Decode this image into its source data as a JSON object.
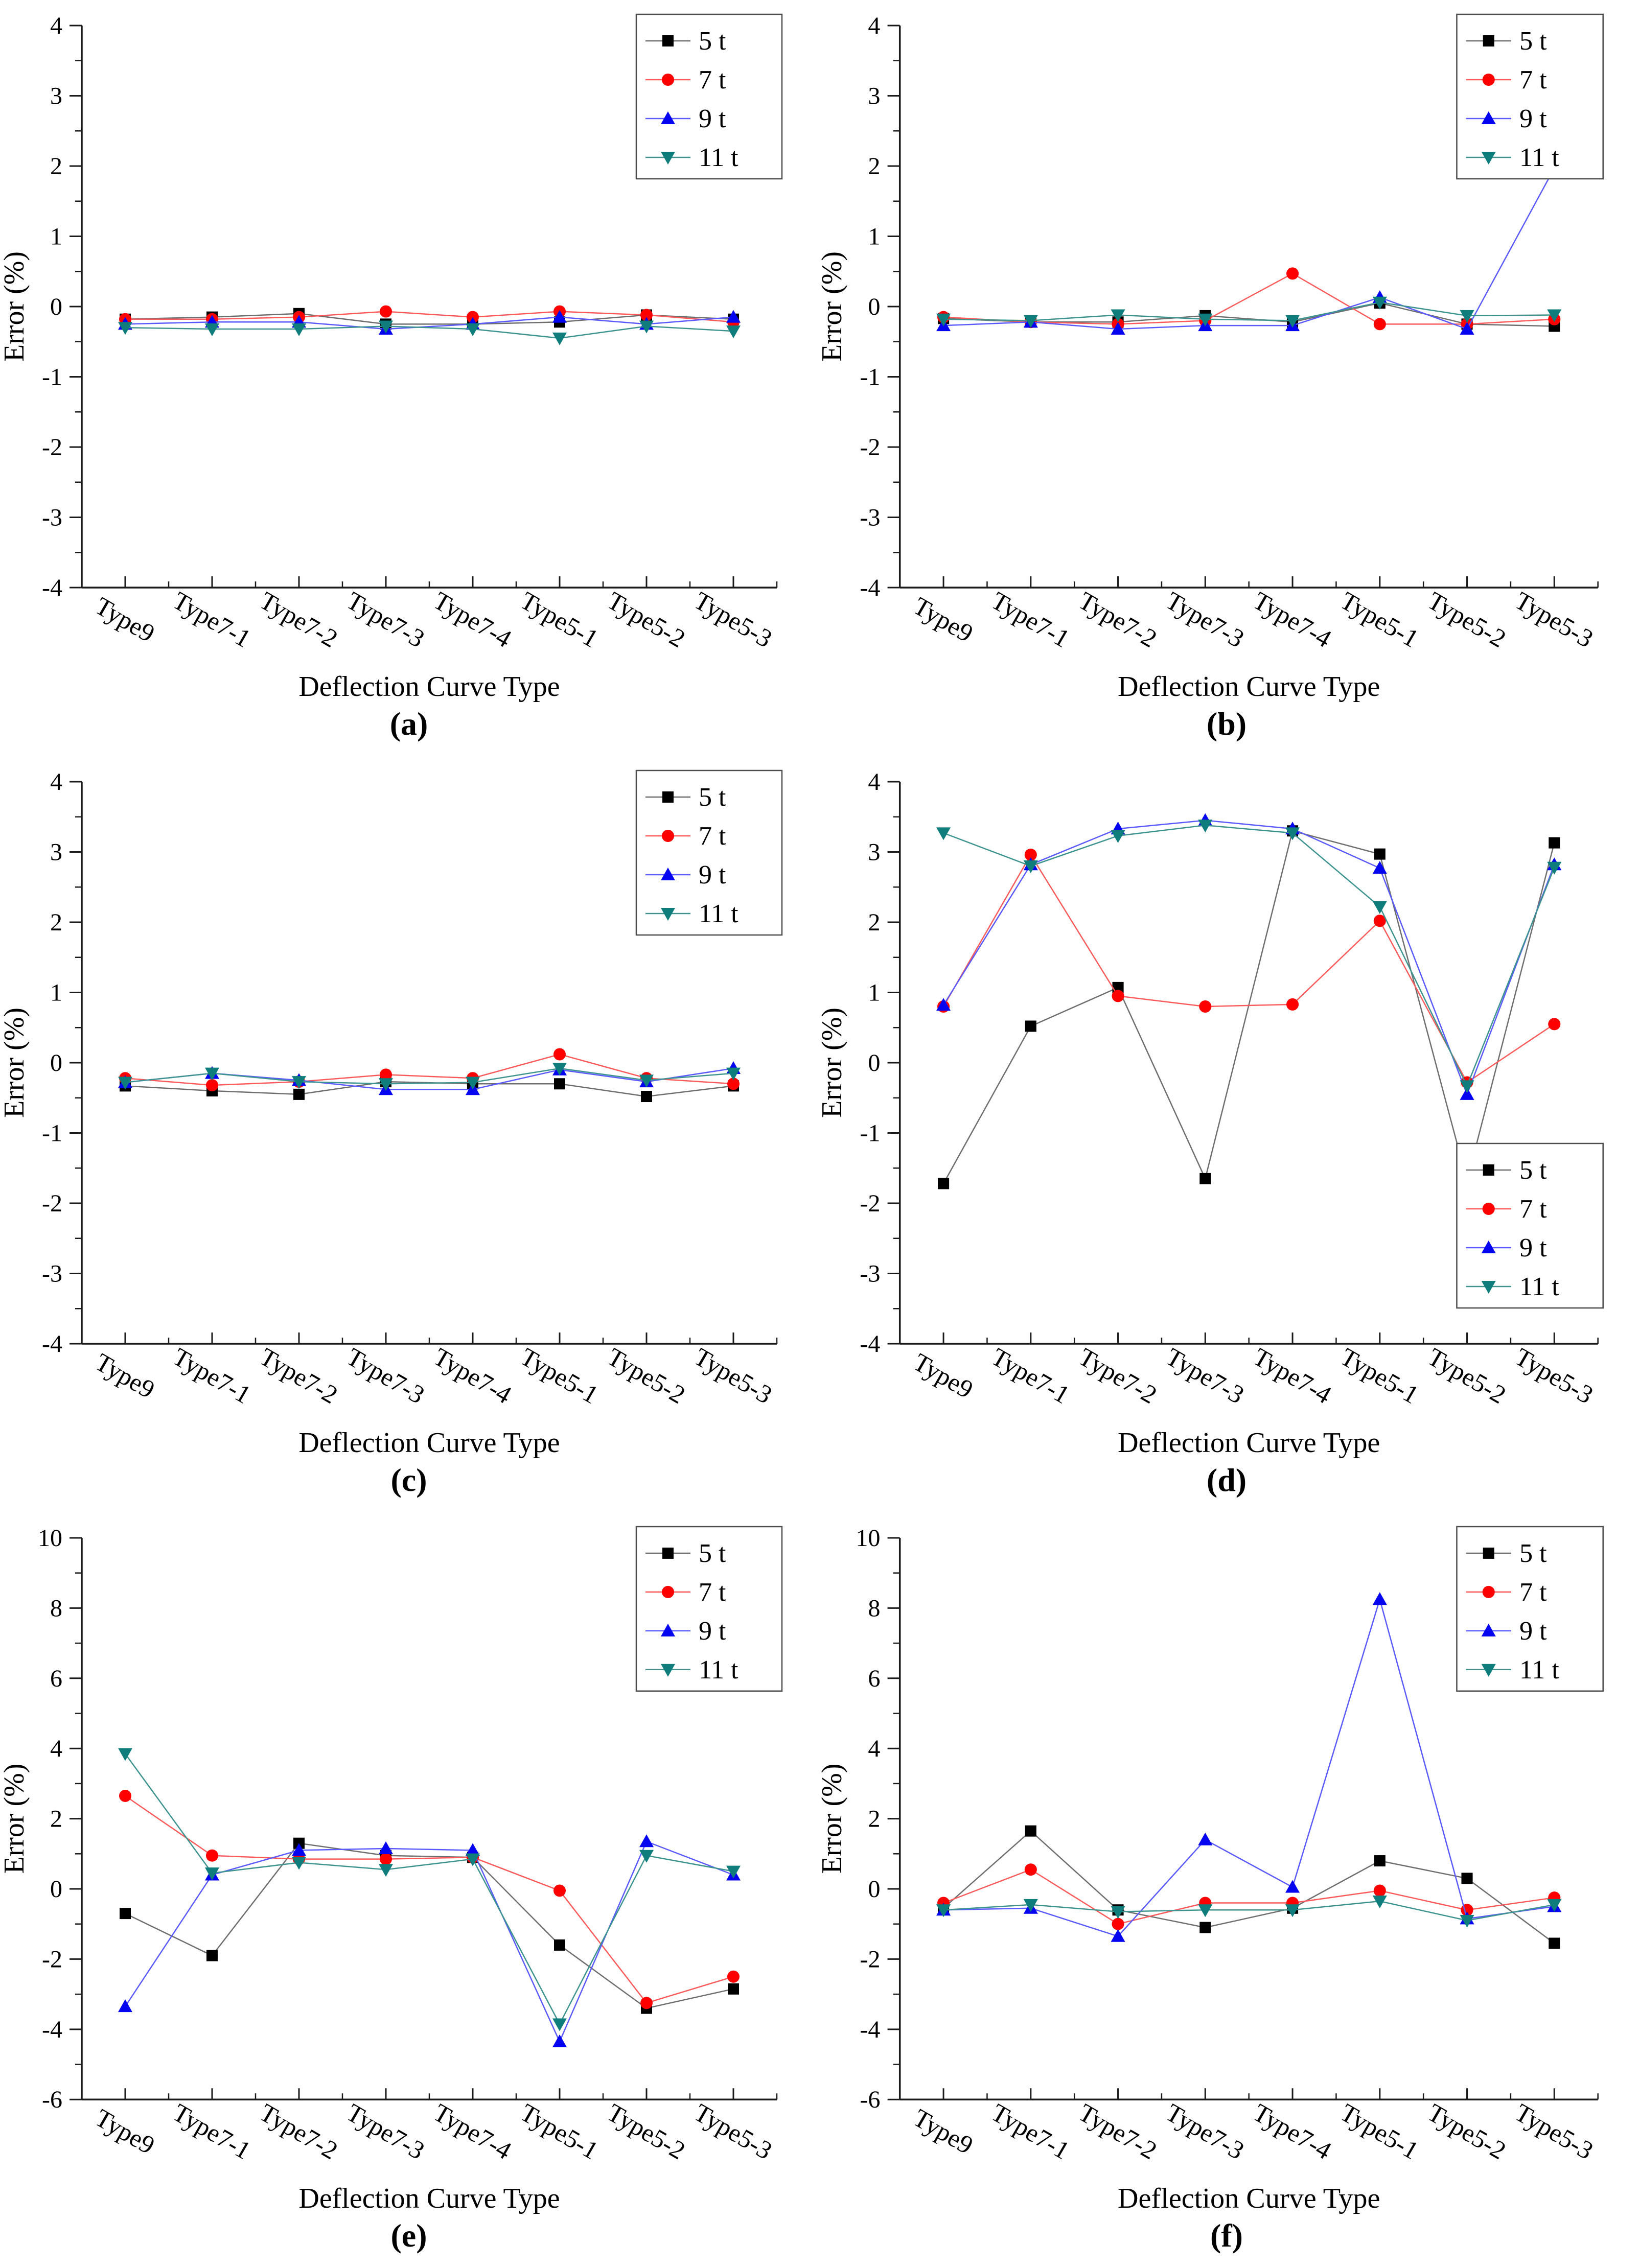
{
  "figure": {
    "description": "Six-panel line chart figure of load test errors by deflection curve type",
    "xlabel": "Deflection Curve Type",
    "ylabel": "Error (%)",
    "categories": [
      "Type9",
      "Type7-1",
      "Type7-2",
      "Type7-3",
      "Type7-4",
      "Type5-1",
      "Type5-2",
      "Type5-3"
    ],
    "series_styles": [
      {
        "name": "5 t",
        "marker": "square",
        "marker_color": "#000000",
        "line_color": "#6e6e6e"
      },
      {
        "name": "7 t",
        "marker": "circle",
        "marker_color": "#fe0000",
        "line_color": "#fc5a5a"
      },
      {
        "name": "9 t",
        "marker": "triangle-up",
        "marker_color": "#0504f0",
        "line_color": "#5a59ff"
      },
      {
        "name": "11 t",
        "marker": "triangle-down",
        "marker_color": "#0e7d7c",
        "line_color": "#3d948f"
      }
    ],
    "axis_color": "#1a1a1a",
    "legend_border_color": "#4d4d4d"
  },
  "chart_data": [
    {
      "type": "line",
      "label": "(a)",
      "letter": "a",
      "xlabel": "Deflection Curve Type",
      "ylabel": "Error (%)",
      "categories": [
        "Type9",
        "Type7-1",
        "Type7-2",
        "Type7-3",
        "Type7-4",
        "Type5-1",
        "Type5-2",
        "Type5-3"
      ],
      "ylim": [
        -4,
        4
      ],
      "ytick_step": 1,
      "grid": false,
      "legend_position": "top-right",
      "legend_entries": [
        "5 t",
        "7 t",
        "9 t",
        "11 t"
      ],
      "series": [
        {
          "name": "5 t",
          "values": [
            -0.18,
            -0.15,
            -0.1,
            -0.25,
            -0.25,
            -0.22,
            -0.12,
            -0.18
          ]
        },
        {
          "name": "7 t",
          "values": [
            -0.18,
            -0.18,
            -0.15,
            -0.07,
            -0.15,
            -0.07,
            -0.12,
            -0.22
          ]
        },
        {
          "name": "9 t",
          "values": [
            -0.25,
            -0.22,
            -0.22,
            -0.32,
            -0.25,
            -0.15,
            -0.25,
            -0.15
          ]
        },
        {
          "name": "11 t",
          "values": [
            -0.3,
            -0.32,
            -0.32,
            -0.28,
            -0.32,
            -0.45,
            -0.28,
            -0.35
          ]
        }
      ]
    },
    {
      "type": "line",
      "label": "(b)",
      "letter": "b",
      "xlabel": "Deflection Curve Type",
      "ylabel": "Error (%)",
      "categories": [
        "Type9",
        "Type7-1",
        "Type7-2",
        "Type7-3",
        "Type7-4",
        "Type5-1",
        "Type5-2",
        "Type5-3"
      ],
      "ylim": [
        -4,
        4
      ],
      "ytick_step": 1,
      "grid": false,
      "legend_position": "top-right",
      "legend_entries": [
        "5 t",
        "7 t",
        "9 t",
        "11 t"
      ],
      "series": [
        {
          "name": "5 t",
          "values": [
            -0.17,
            -0.22,
            -0.22,
            -0.13,
            -0.22,
            0.05,
            -0.25,
            -0.28
          ]
        },
        {
          "name": "7 t",
          "values": [
            -0.15,
            -0.22,
            -0.25,
            -0.2,
            0.47,
            -0.25,
            -0.25,
            -0.18
          ]
        },
        {
          "name": "9 t",
          "values": [
            -0.27,
            -0.22,
            -0.32,
            -0.27,
            -0.27,
            0.13,
            -0.32,
            1.97
          ]
        },
        {
          "name": "11 t",
          "values": [
            -0.18,
            -0.2,
            -0.12,
            -0.18,
            -0.2,
            0.06,
            -0.13,
            -0.12
          ]
        }
      ]
    },
    {
      "type": "line",
      "label": "(c)",
      "letter": "c",
      "xlabel": "Deflection Curve Type",
      "ylabel": "Error (%)",
      "categories": [
        "Type9",
        "Type7-1",
        "Type7-2",
        "Type7-3",
        "Type7-4",
        "Type5-1",
        "Type5-2",
        "Type5-3"
      ],
      "ylim": [
        -4,
        4
      ],
      "ytick_step": 1,
      "grid": false,
      "legend_position": "top-right",
      "legend_entries": [
        "5 t",
        "7 t",
        "9 t",
        "11 t"
      ],
      "series": [
        {
          "name": "5 t",
          "values": [
            -0.33,
            -0.4,
            -0.45,
            -0.27,
            -0.3,
            -0.3,
            -0.48,
            -0.33
          ]
        },
        {
          "name": "7 t",
          "values": [
            -0.22,
            -0.32,
            -0.27,
            -0.17,
            -0.22,
            0.12,
            -0.22,
            -0.3
          ]
        },
        {
          "name": "9 t",
          "values": [
            -0.28,
            -0.15,
            -0.25,
            -0.38,
            -0.38,
            -0.1,
            -0.27,
            -0.08
          ]
        },
        {
          "name": "11 t",
          "values": [
            -0.28,
            -0.15,
            -0.27,
            -0.3,
            -0.28,
            -0.08,
            -0.25,
            -0.15
          ]
        }
      ]
    },
    {
      "type": "line",
      "label": "(d)",
      "letter": "d",
      "xlabel": "Deflection Curve Type",
      "ylabel": "Error (%)",
      "categories": [
        "Type9",
        "Type7-1",
        "Type7-2",
        "Type7-3",
        "Type7-4",
        "Type5-1",
        "Type5-2",
        "Type5-3"
      ],
      "ylim": [
        -4,
        4
      ],
      "ytick_step": 1,
      "grid": false,
      "legend_position": "bottom-right",
      "legend_entries": [
        "5 t",
        "7 t",
        "9 t",
        "11 t"
      ],
      "series": [
        {
          "name": "5 t",
          "values": [
            -1.72,
            0.52,
            1.07,
            -1.65,
            3.3,
            2.97,
            -1.68,
            3.13
          ]
        },
        {
          "name": "7 t",
          "values": [
            0.8,
            2.96,
            0.95,
            0.8,
            0.83,
            2.02,
            -0.28,
            0.55
          ]
        },
        {
          "name": "9 t",
          "values": [
            0.82,
            2.82,
            3.33,
            3.45,
            3.33,
            2.77,
            -0.45,
            2.82
          ]
        },
        {
          "name": "11 t",
          "values": [
            3.27,
            2.8,
            3.23,
            3.38,
            3.27,
            2.22,
            -0.33,
            2.78
          ]
        }
      ]
    },
    {
      "type": "line",
      "label": "(e)",
      "letter": "e",
      "xlabel": "Deflection Curve Type",
      "ylabel": "Error (%)",
      "categories": [
        "Type9",
        "Type7-1",
        "Type7-2",
        "Type7-3",
        "Type7-4",
        "Type5-1",
        "Type5-2",
        "Type5-3"
      ],
      "ylim": [
        -6,
        10
      ],
      "ytick_step": 2,
      "grid": false,
      "legend_position": "top-right",
      "legend_entries": [
        "5 t",
        "7 t",
        "9 t",
        "11 t"
      ],
      "series": [
        {
          "name": "5 t",
          "values": [
            -0.7,
            -1.9,
            1.3,
            0.95,
            0.9,
            -1.6,
            -3.4,
            -2.85
          ]
        },
        {
          "name": "7 t",
          "values": [
            2.65,
            0.95,
            0.85,
            0.85,
            0.9,
            -0.05,
            -3.25,
            -2.5
          ]
        },
        {
          "name": "9 t",
          "values": [
            -3.35,
            0.4,
            1.1,
            1.15,
            1.1,
            -4.35,
            1.35,
            0.4
          ]
        },
        {
          "name": "11 t",
          "values": [
            3.85,
            0.45,
            0.75,
            0.55,
            0.85,
            -3.85,
            0.95,
            0.5
          ]
        }
      ]
    },
    {
      "type": "line",
      "label": "(f)",
      "letter": "f",
      "xlabel": "Deflection Curve Type",
      "ylabel": "Error (%)",
      "categories": [
        "Type9",
        "Type7-1",
        "Type7-2",
        "Type7-3",
        "Type7-4",
        "Type5-1",
        "Type5-2",
        "Type5-3"
      ],
      "ylim": [
        -6,
        10
      ],
      "ytick_step": 2,
      "grid": false,
      "legend_position": "top-right",
      "legend_entries": [
        "5 t",
        "7 t",
        "9 t",
        "11 t"
      ],
      "series": [
        {
          "name": "5 t",
          "values": [
            -0.55,
            1.65,
            -0.6,
            -1.1,
            -0.55,
            0.8,
            0.3,
            -1.55
          ]
        },
        {
          "name": "7 t",
          "values": [
            -0.4,
            0.55,
            -1.0,
            -0.4,
            -0.4,
            -0.05,
            -0.6,
            -0.25
          ]
        },
        {
          "name": "9 t",
          "values": [
            -0.6,
            -0.55,
            -1.35,
            1.4,
            0.05,
            8.25,
            -0.85,
            -0.5
          ]
        },
        {
          "name": "11 t",
          "values": [
            -0.6,
            -0.45,
            -0.65,
            -0.6,
            -0.6,
            -0.35,
            -0.9,
            -0.45
          ]
        }
      ]
    }
  ]
}
